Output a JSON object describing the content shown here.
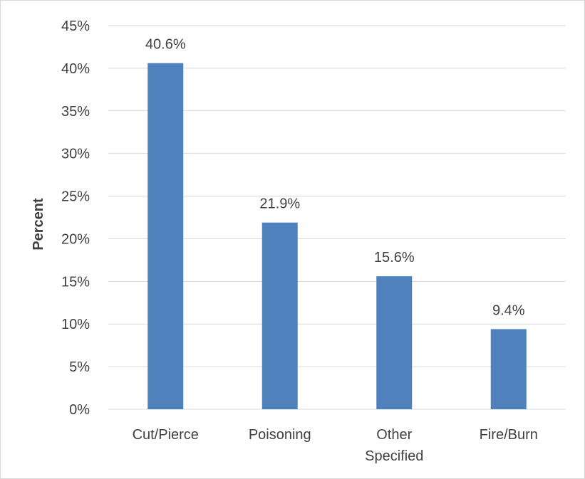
{
  "chart_data": {
    "type": "bar",
    "title": "",
    "xlabel": "",
    "ylabel": "Percent",
    "categories": [
      "Cut/Pierce",
      "Poisoning",
      "Other Specified",
      "Fire/Burn"
    ],
    "values": [
      40.6,
      21.9,
      15.6,
      9.4
    ],
    "data_labels": [
      "40.6%",
      "21.9%",
      "15.6%",
      "9.4%"
    ],
    "y_ticks": [
      0,
      5,
      10,
      15,
      20,
      25,
      30,
      35,
      40,
      45
    ],
    "y_tick_labels": [
      "0%",
      "5%",
      "10%",
      "15%",
      "20%",
      "25%",
      "30%",
      "35%",
      "40%",
      "45%"
    ],
    "ylim": [
      0,
      45
    ],
    "grid": true,
    "legend": "none",
    "bar_color": "#4f81bd",
    "grid_color": "#d9d9d9",
    "text_color": "#404040"
  }
}
